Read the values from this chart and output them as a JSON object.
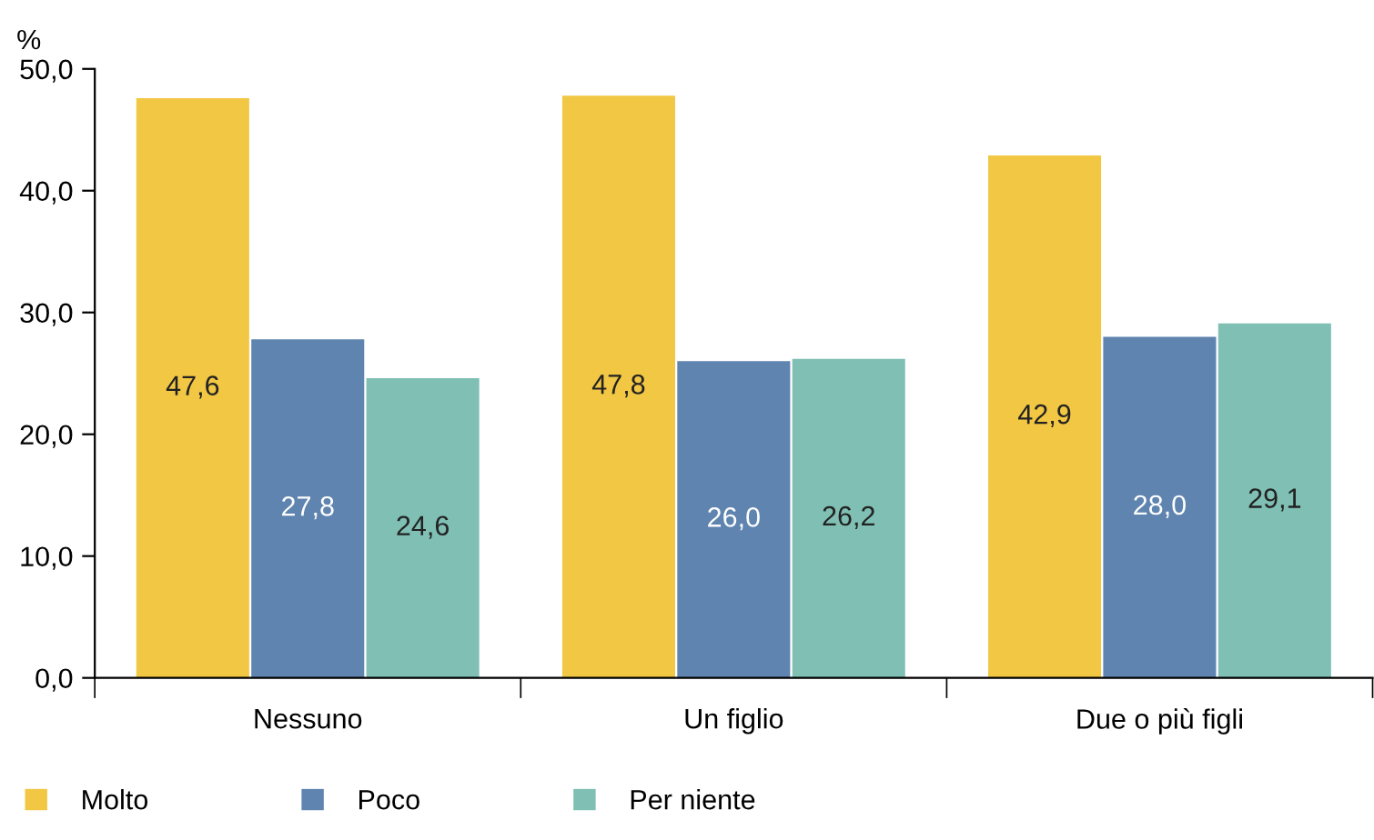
{
  "chart_data": {
    "type": "bar",
    "ylabel": "%",
    "categories": [
      "Nessuno",
      "Un figlio",
      "Due o più figli"
    ],
    "series": [
      {
        "name": "Molto",
        "color": "#f2c744",
        "values": [
          47.6,
          47.8,
          42.9
        ],
        "value_labels": [
          "47,6",
          "47,8",
          "42,9"
        ]
      },
      {
        "name": "Poco",
        "color": "#5f84b0",
        "values": [
          27.8,
          26.0,
          28.0
        ],
        "value_labels": [
          "27,8",
          "26,0",
          "28,0"
        ]
      },
      {
        "name": "Per niente",
        "color": "#7fbfb4",
        "values": [
          24.6,
          26.2,
          29.1
        ],
        "value_labels": [
          "24,6",
          "26,2",
          "29,1"
        ]
      }
    ],
    "ylim": [
      0,
      50
    ],
    "yticks": [
      {
        "value": 0,
        "label": "0,0"
      },
      {
        "value": 10,
        "label": "10,0"
      },
      {
        "value": 20,
        "label": "20,0"
      },
      {
        "value": 30,
        "label": "30,0"
      },
      {
        "value": 40,
        "label": "40,0"
      },
      {
        "value": 50,
        "label": "50,0"
      }
    ],
    "grid": false,
    "legend": "bottom"
  }
}
